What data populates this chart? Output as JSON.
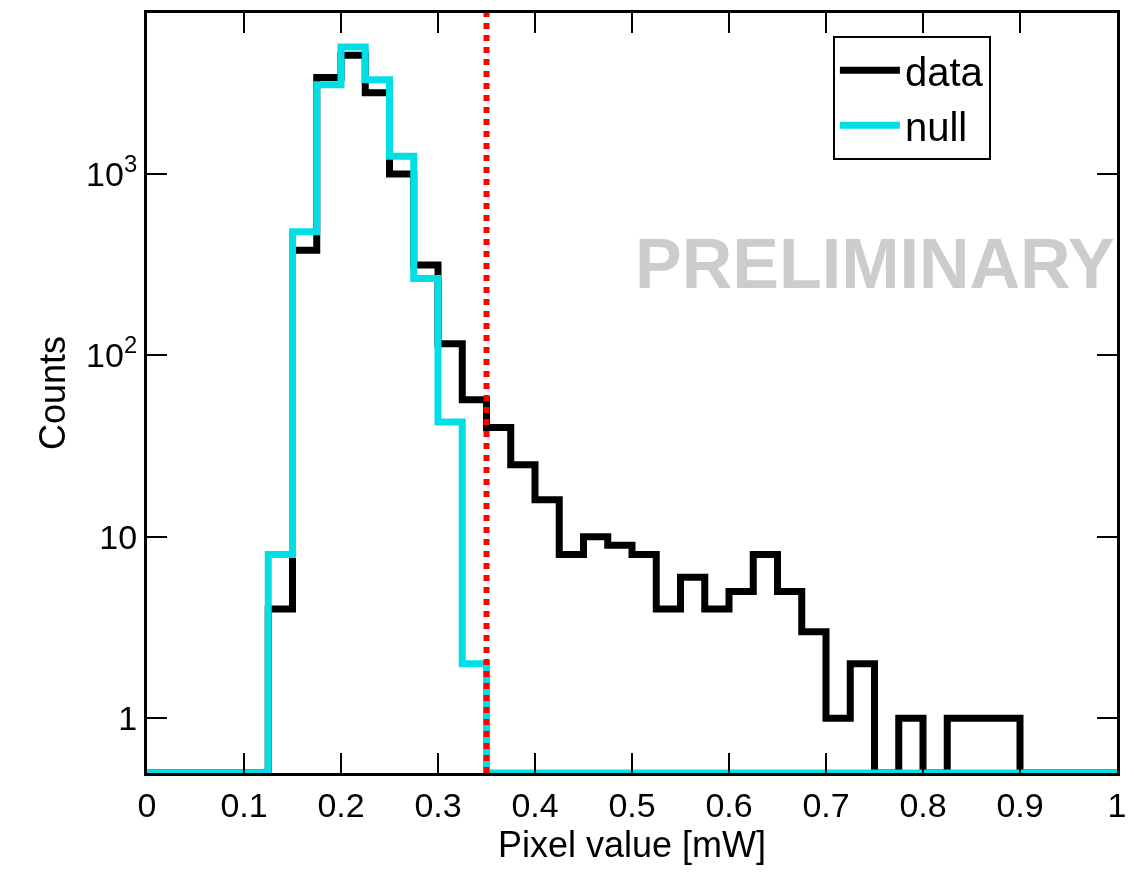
{
  "chart_data": {
    "type": "histogram",
    "xlabel": "Pixel value [mW]",
    "ylabel": "Counts",
    "bins": [
      0,
      0.025,
      0.05,
      0.075,
      0.1,
      0.125,
      0.15,
      0.175,
      0.2,
      0.225,
      0.25,
      0.275,
      0.3,
      0.325,
      0.35,
      0.375,
      0.4,
      0.425,
      0.45,
      0.475,
      0.5,
      0.525,
      0.55,
      0.575,
      0.6,
      0.625,
      0.65,
      0.675,
      0.7,
      0.725,
      0.75,
      0.775,
      0.8,
      0.825,
      0.85,
      0.875,
      0.9,
      0.925,
      0.95,
      0.975,
      1
    ],
    "series": [
      {
        "name": "data",
        "color": "#000000",
        "values": [
          null,
          null,
          null,
          null,
          null,
          4,
          380,
          3400,
          4500,
          2800,
          1000,
          315,
          116,
          57,
          40,
          25,
          16,
          8,
          10,
          9,
          8,
          4,
          6,
          4,
          5,
          8,
          5,
          3,
          1,
          2,
          null,
          1,
          null,
          1,
          1,
          1,
          null,
          null,
          null,
          null
        ]
      },
      {
        "name": "null",
        "color": "#00e0e4",
        "values": [
          null,
          null,
          null,
          null,
          null,
          8,
          480,
          3100,
          5000,
          3300,
          1250,
          265,
          43,
          2,
          null,
          null,
          null,
          null,
          null,
          null,
          null,
          null,
          null,
          null,
          null,
          null,
          null,
          null,
          null,
          null,
          null,
          null,
          null,
          null,
          null,
          null,
          null,
          null,
          null,
          null
        ]
      }
    ],
    "log": "y",
    "xlim": [
      0,
      1
    ],
    "ylim": [
      0.5,
      7700
    ],
    "xticks": [
      0,
      0.1,
      0.2,
      0.3,
      0.4,
      0.5,
      0.6,
      0.7,
      0.8,
      0.9,
      1
    ],
    "yticks": [
      1,
      10,
      {
        "value": 100,
        "label": "10$^{2}$"
      },
      {
        "value": 1000,
        "label": "10$^{3}$"
      }
    ],
    "ref_lines": [
      {
        "axis": "x",
        "value": 0.35,
        "color": "#ff0000",
        "line_style": "dotted"
      }
    ],
    "annotations": [
      "PRELIMINARY"
    ],
    "legend": "top right",
    "line_style": "solid",
    "marker": "none"
  }
}
